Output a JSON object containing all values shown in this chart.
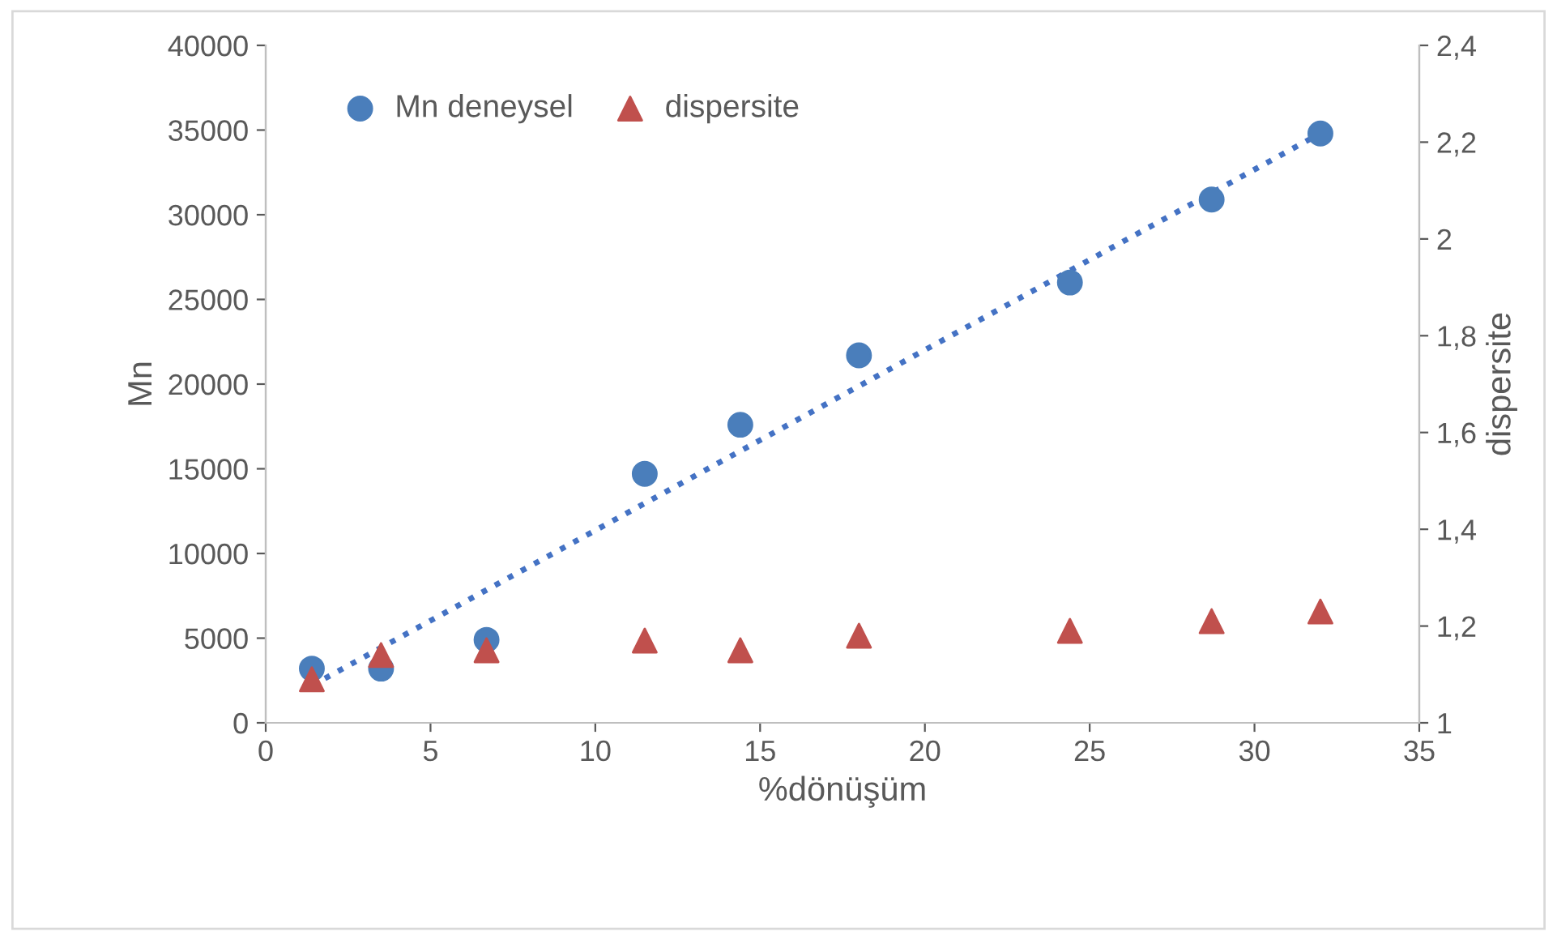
{
  "chart_data": {
    "type": "scatter",
    "xlabel": "%dönüşüm",
    "ylabel": "Mn",
    "y2label": "dispersite",
    "xlim": [
      0,
      35
    ],
    "xticks": [
      0,
      5,
      10,
      15,
      20,
      25,
      30,
      35
    ],
    "ylim": [
      0,
      40000
    ],
    "yticks": [
      0,
      5000,
      10000,
      15000,
      20000,
      25000,
      30000,
      35000,
      40000
    ],
    "y2lim": [
      1,
      2.4
    ],
    "y2ticks": [
      {
        "value": 1,
        "label": "1"
      },
      {
        "value": 1.2,
        "label": "1,2"
      },
      {
        "value": 1.4,
        "label": "1,4"
      },
      {
        "value": 1.6,
        "label": "1,6"
      },
      {
        "value": 1.8,
        "label": "1,8"
      },
      {
        "value": 2,
        "label": "2"
      },
      {
        "value": 2.2,
        "label": "2,2"
      },
      {
        "value": 2.4,
        "label": "2,4"
      }
    ],
    "x": [
      1.4,
      3.5,
      6.7,
      11.5,
      14.4,
      18.0,
      24.4,
      28.7,
      32.0
    ],
    "legend": "top left",
    "grid": false,
    "series": [
      {
        "name": "Mn deneysel",
        "marker": "circle",
        "color": "#4a7ebb",
        "values": [
          3200,
          3200,
          4900,
          14700,
          17600,
          21700,
          26000,
          30900,
          34800
        ]
      },
      {
        "name": "dispersite",
        "marker": "triangle",
        "axis": "y2",
        "color": "#c0504d",
        "values": [
          1.09,
          1.14,
          1.15,
          1.17,
          1.15,
          1.18,
          1.19,
          1.21,
          1.23
        ]
      },
      {
        "type": "line",
        "x": [
          1.4,
          32.0
        ],
        "values": [
          2200,
          34800
        ],
        "color": "#4472c4",
        "line_style": "dotted",
        "marker": "none"
      }
    ]
  }
}
